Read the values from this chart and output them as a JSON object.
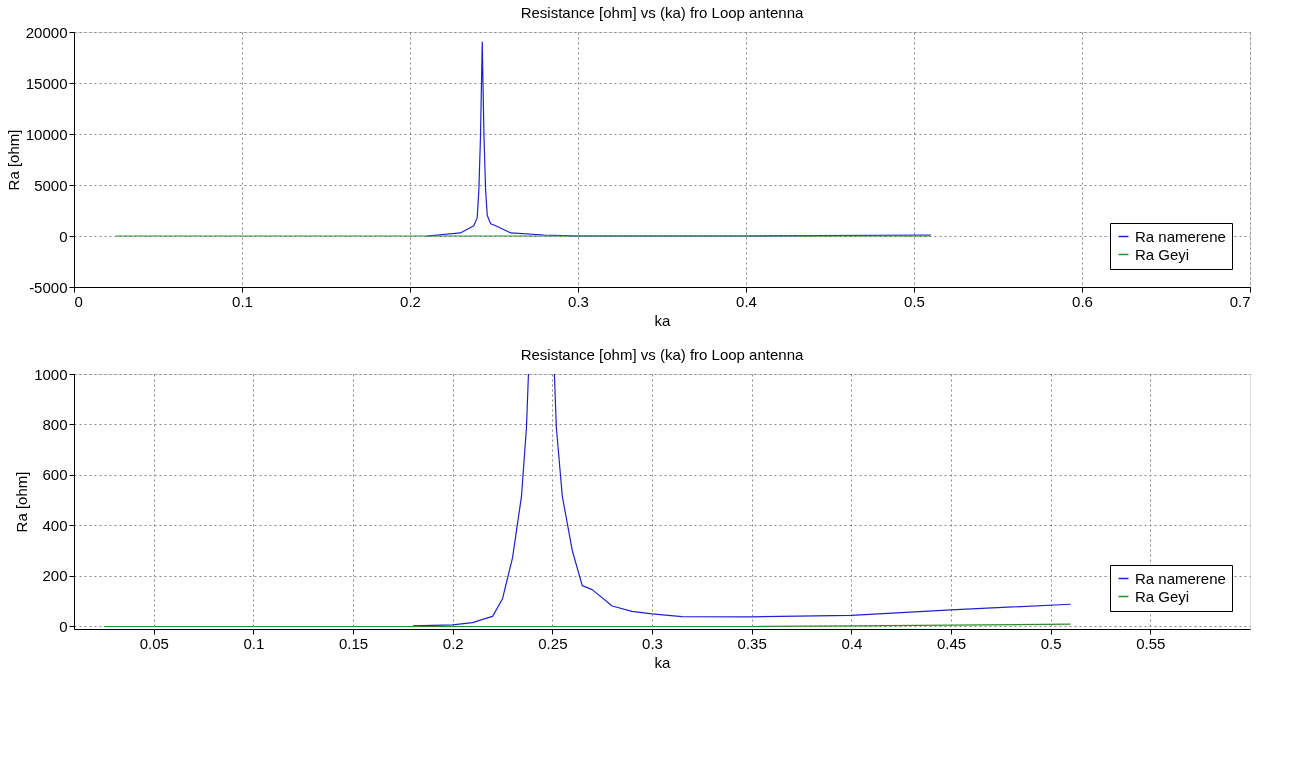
{
  "chart_data": [
    {
      "type": "line",
      "title": "Resistance [ohm] vs (ka) fro Loop antenna",
      "xlabel": "ka",
      "ylabel": "Ra [ohm]",
      "xlim": [
        0,
        0.7
      ],
      "ylim": [
        -5000,
        20000
      ],
      "xticks": [
        0,
        0.1,
        0.2,
        0.3,
        0.4,
        0.5,
        0.6,
        0.7
      ],
      "yticks": [
        -5000,
        0,
        5000,
        10000,
        15000,
        20000
      ],
      "grid": true,
      "legend": "bottom right",
      "line_style": "solid",
      "series": [
        {
          "name": "Ra namerene",
          "color": "#2020d0",
          "x": [
            0.21,
            0.23,
            0.238,
            0.24,
            0.241,
            0.242,
            0.243,
            0.244,
            0.245,
            0.246,
            0.248,
            0.251,
            0.26,
            0.28,
            0.3,
            0.4,
            0.51
          ],
          "values": [
            0,
            300,
            1000,
            1800,
            4500,
            10000,
            19000,
            10000,
            4500,
            2000,
            1200,
            1000,
            300,
            100,
            0,
            0,
            100
          ]
        },
        {
          "name": "Ra Geyi",
          "color": "#2e8b2e",
          "x": [
            0.025,
            0.51
          ],
          "values": [
            0,
            0
          ]
        }
      ]
    },
    {
      "type": "line",
      "title": "Resistance [ohm] vs (ka) fro Loop antenna",
      "xlabel": "ka",
      "ylabel": "Ra [ohm]",
      "xlim": [
        0.01,
        0.6
      ],
      "ylim": [
        -10,
        1000
      ],
      "xticks": [
        0.05,
        0.1,
        0.15,
        0.2,
        0.25,
        0.3,
        0.35,
        0.4,
        0.45,
        0.5,
        0.55
      ],
      "yticks": [
        0,
        200,
        400,
        600,
        800,
        1000
      ],
      "grid": true,
      "legend": "bottom right",
      "line_style": "solid",
      "series": [
        {
          "name": "Ra namerene",
          "color": "#2020d0",
          "x": [
            0.18,
            0.19,
            0.2,
            0.21,
            0.215,
            0.22,
            0.225,
            0.23,
            0.2345,
            0.237,
            0.238,
            0.24,
            0.25,
            0.251,
            0.252,
            0.255,
            0.26,
            0.265,
            0.27,
            0.28,
            0.29,
            0.3,
            0.315,
            0.35,
            0.4,
            0.45,
            0.51
          ],
          "values": [
            2,
            4,
            6,
            15,
            28,
            40,
            110,
            272,
            515,
            788,
            1000,
            null,
            null,
            1000,
            788,
            515,
            300,
            162,
            146,
            81,
            60,
            50,
            39,
            38,
            44,
            66,
            88
          ]
        },
        {
          "name": "Ra Geyi",
          "color": "#2e8b2e",
          "x": [
            0.025,
            0.1,
            0.2,
            0.3,
            0.35,
            0.4,
            0.45,
            0.51
          ],
          "values": [
            0,
            0,
            0,
            0,
            0,
            2,
            5,
            9
          ]
        }
      ]
    }
  ]
}
